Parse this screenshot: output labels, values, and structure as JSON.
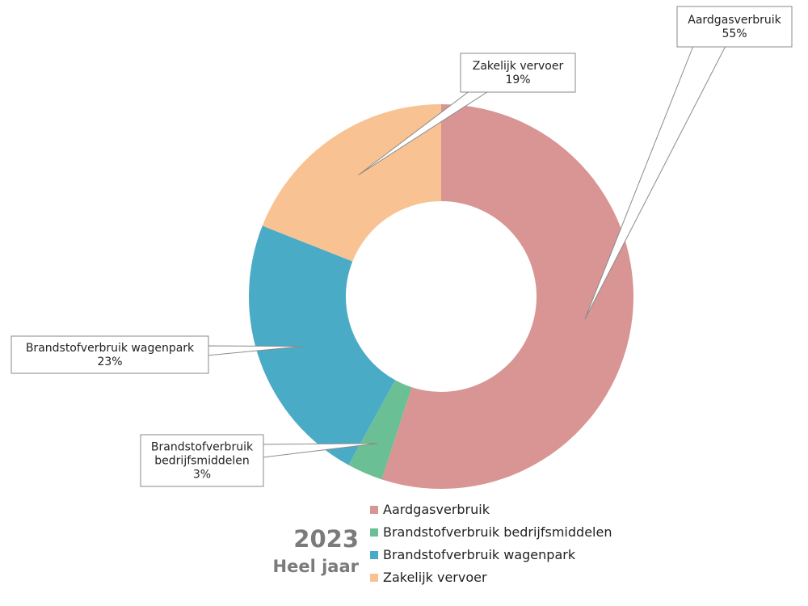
{
  "chart_data": {
    "type": "pie",
    "variant": "donut",
    "categories": [
      "Aardgasverbruik",
      "Brandstofverbruik bedrijfsmiddelen",
      "Brandstofverbruik wagenpark",
      "Zakelijk vervoer"
    ],
    "values": [
      55,
      3,
      23,
      19
    ],
    "labels": [
      "55%",
      "3%",
      "23%",
      "19%"
    ],
    "colors": [
      "#d89594",
      "#6bbf95",
      "#4aabc6",
      "#f9c292"
    ],
    "legend_position": "bottom"
  },
  "period": {
    "year": "2023",
    "label": "Heel jaar"
  }
}
